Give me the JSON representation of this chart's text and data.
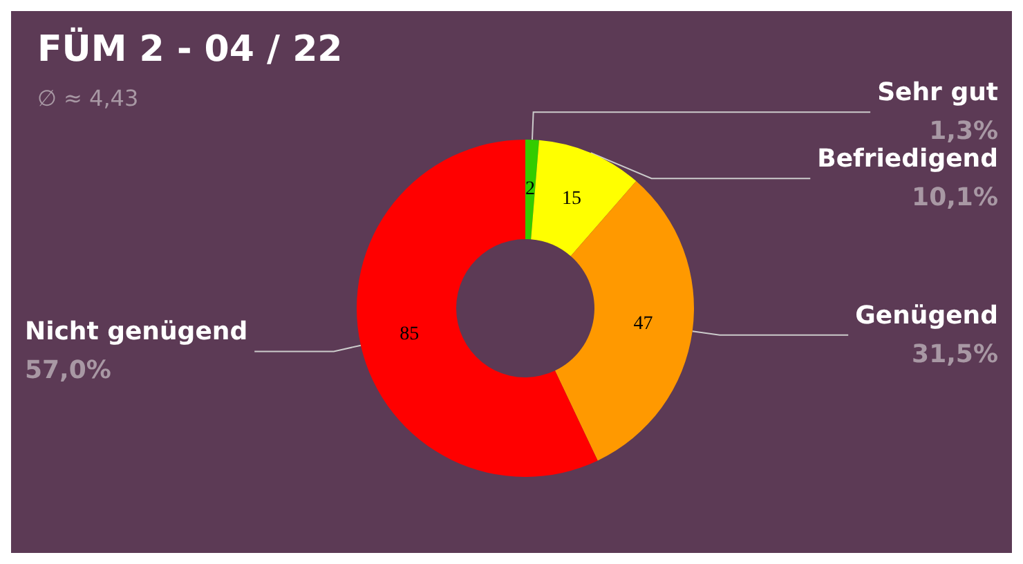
{
  "chart_data": {
    "type": "donut",
    "title": "FÜM 2 - 04 / 22",
    "subtitle": "∅ ≈ 4,43",
    "categories": [
      "Sehr gut",
      "Befriedigend",
      "Genügend",
      "Nicht genügend"
    ],
    "values": [
      1.3,
      10.1,
      31.5,
      57.0
    ],
    "colors": [
      "#33cc00",
      "#ffff00",
      "#ff9900",
      "#ff0000"
    ],
    "value_labels": [
      "1,3%",
      "10,1%",
      "31,5%",
      "57,0%"
    ],
    "annotations": [
      {
        "text": "2",
        "x": "Sehr gut"
      },
      {
        "text": "15",
        "x": "Befriedigend"
      },
      {
        "text": "47",
        "x": "Genügend"
      },
      {
        "text": "85",
        "x": "Nicht genügend"
      }
    ],
    "legend": false
  }
}
